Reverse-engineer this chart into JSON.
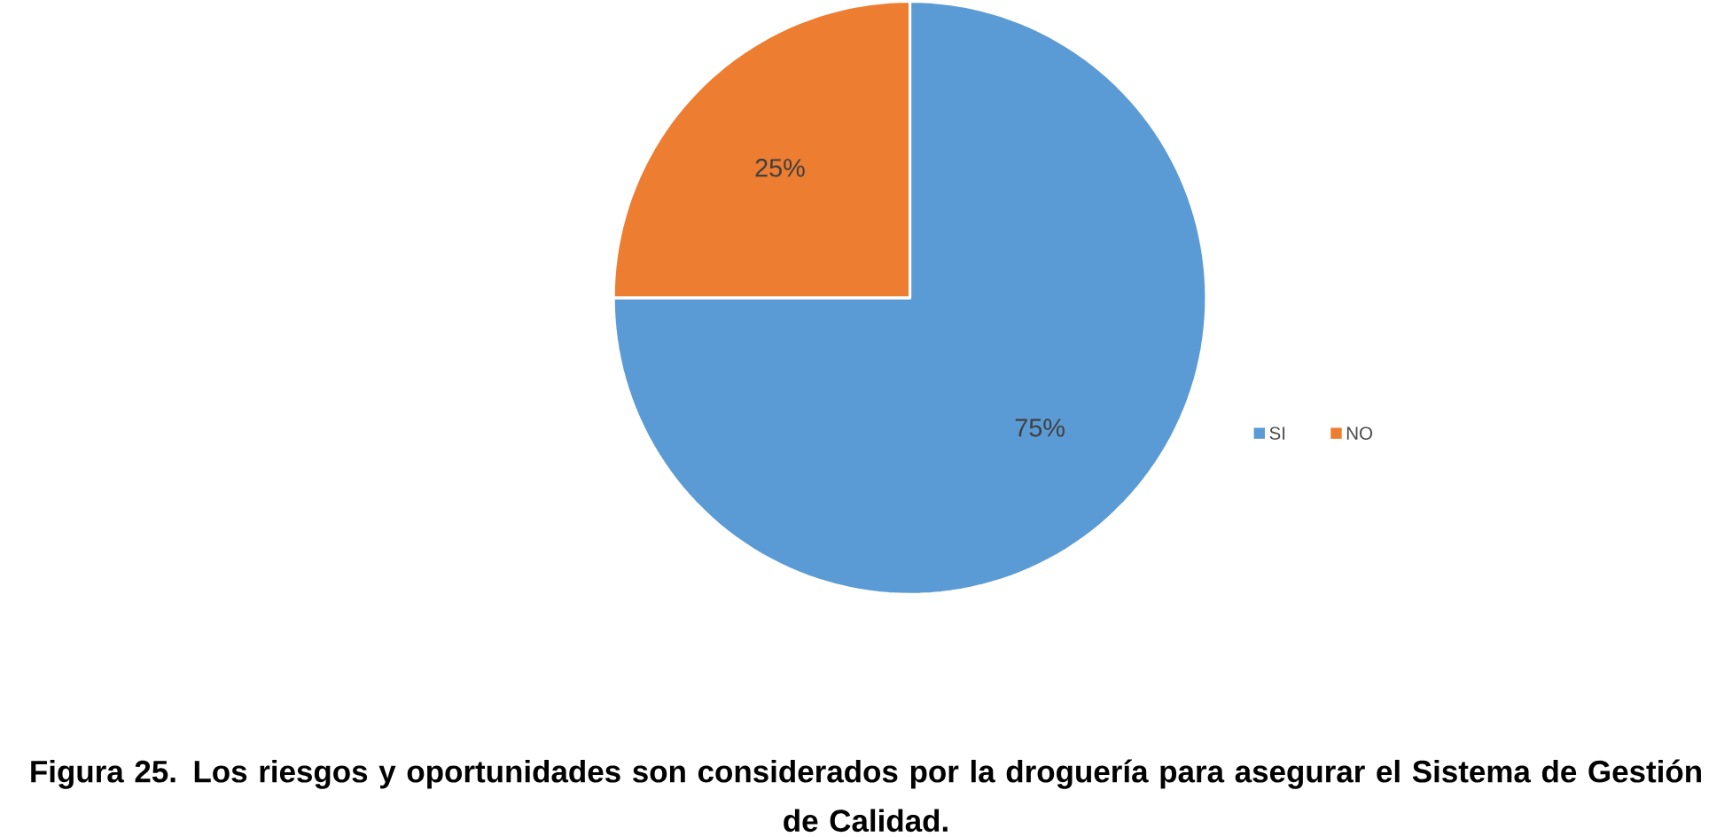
{
  "chart_data": {
    "type": "pie",
    "title": "Figura 25. Los riesgos y oportunidades son considerados por la droguería para asegurar el Sistema de Gestión de Calidad.",
    "categories": [
      "SI",
      "NO"
    ],
    "values": [
      75,
      25
    ],
    "colors": [
      "#5b9bd5",
      "#ed7d31"
    ],
    "value_labels": [
      "75%",
      "25%"
    ],
    "legend": "right"
  }
}
